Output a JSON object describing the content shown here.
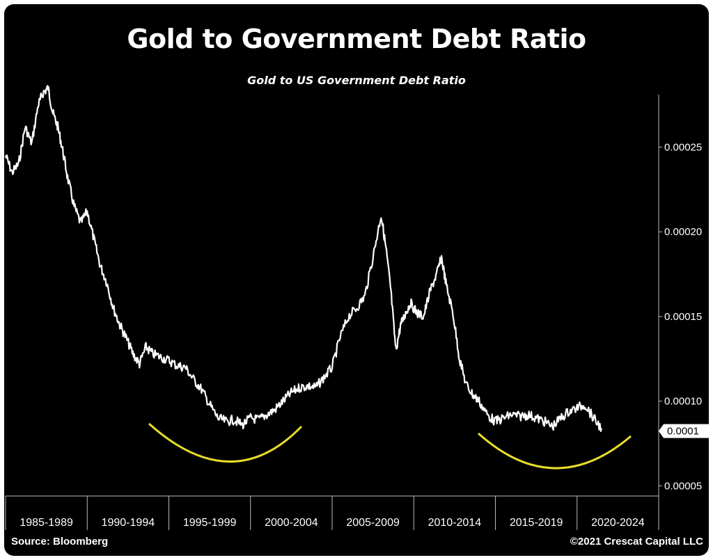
{
  "chart_data": {
    "type": "line",
    "title": "Gold to Government Debt Ratio",
    "subtitle": "Gold to US Government Debt Ratio",
    "xlabel": "",
    "ylabel": "",
    "categories": [
      "1985-1989",
      "1990-1994",
      "1995-1999",
      "2000-2004",
      "2005-2009",
      "2010-2014",
      "2015-2019",
      "2020-2024"
    ],
    "xlim": [
      1985,
      2025
    ],
    "ylim": [
      4.4e-05,
      0.000281
    ],
    "yticks": [
      {
        "value": 5e-05,
        "label": "0.00005"
      },
      {
        "value": 0.0001,
        "label": "0.00010"
      },
      {
        "value": 0.00015,
        "label": "0.00015"
      },
      {
        "value": 0.0002,
        "label": "0.00020"
      },
      {
        "value": 0.00025,
        "label": "0.00025"
      }
    ],
    "last_value_label": "0.0001",
    "grid": false,
    "line_color": "#ffffff",
    "highlight_color": "#e8dc2a",
    "series": [
      {
        "x": [
          1985.0,
          1985.4,
          1985.8,
          1986.2,
          1986.6,
          1987.0,
          1987.3,
          1987.6,
          1987.9,
          1988.2,
          1988.5,
          1988.8,
          1989.2,
          1989.6,
          1990.0,
          1990.4,
          1990.8,
          1991.2,
          1991.6,
          1992.0,
          1992.4,
          1992.8,
          1993.2,
          1993.6,
          1994.0,
          1994.5,
          1995.0,
          1995.5,
          1996.0,
          1996.5,
          1997.0,
          1997.5,
          1998.0,
          1998.5,
          1999.0,
          1999.5,
          2000.0,
          2000.5,
          2001.0,
          2001.5,
          2002.0,
          2002.5,
          2003.0,
          2003.5,
          2004.0,
          2004.5,
          2005.0,
          2005.5,
          2006.0,
          2006.5,
          2007.0,
          2007.5,
          2008.0,
          2008.3,
          2008.6,
          2008.9,
          2009.2,
          2009.5,
          2009.8,
          2010.2,
          2010.6,
          2011.0,
          2011.4,
          2011.7,
          2012.0,
          2012.4,
          2012.8,
          2013.2,
          2013.6,
          2014.0,
          2014.5,
          2015.0,
          2015.5,
          2016.0,
          2016.5,
          2017.0,
          2017.5,
          2018.0,
          2018.5,
          2019.0,
          2019.5,
          2020.0,
          2020.5,
          2021.0,
          2021.5
        ],
        "y": [
          0.000245,
          0.000235,
          0.00024,
          0.000262,
          0.000252,
          0.000275,
          0.000282,
          0.000285,
          0.00027,
          0.000262,
          0.000248,
          0.000232,
          0.000215,
          0.000205,
          0.000212,
          0.000196,
          0.00018,
          0.00017,
          0.000155,
          0.000145,
          0.000137,
          0.000128,
          0.000122,
          0.000132,
          0.000128,
          0.000126,
          0.000124,
          0.000121,
          0.00012,
          0.000113,
          0.000107,
          9.8e-05,
          9e-05,
          8.8e-05,
          8.9e-05,
          8.6e-05,
          9e-05,
          8.9e-05,
          9.2e-05,
          9.5e-05,
          0.0001,
          0.000105,
          0.000108,
          0.000109,
          0.000108,
          0.000114,
          0.00012,
          0.000138,
          0.00015,
          0.000155,
          0.000162,
          0.000185,
          0.00021,
          0.00019,
          0.000165,
          0.00013,
          0.000145,
          0.000152,
          0.000158,
          0.000152,
          0.00015,
          0.000165,
          0.000175,
          0.000185,
          0.000168,
          0.000152,
          0.000125,
          0.00011,
          0.000104,
          0.0001,
          9.2e-05,
          8.8e-05,
          9e-05,
          9.2e-05,
          9.1e-05,
          9.2e-05,
          9e-05,
          8.8e-05,
          8.5e-05,
          9e-05,
          9.4e-05,
          9.6e-05,
          9.8e-05,
          9e-05,
          8.4e-05
        ]
      }
    ]
  },
  "footer": {
    "source": "Source: Bloomberg",
    "copyright": "©2021 Crescat Capital LLC"
  }
}
